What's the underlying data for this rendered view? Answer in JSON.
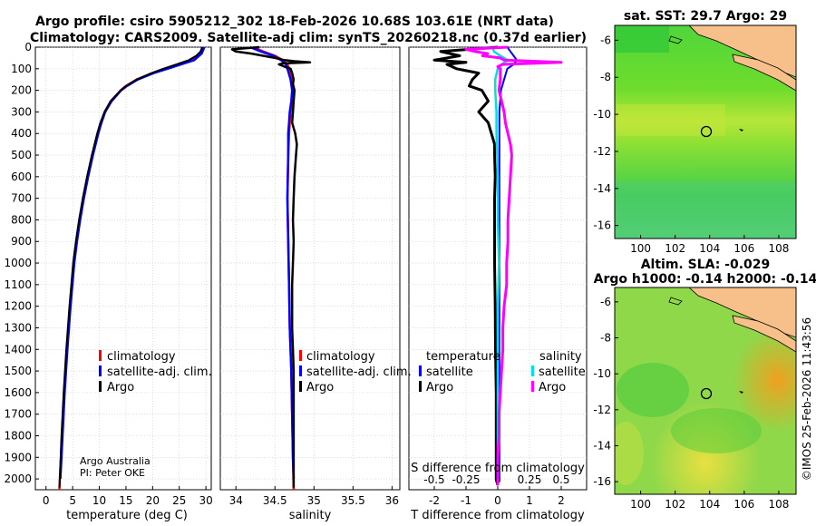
{
  "chart_data": {
    "type": "line",
    "title_line1": "Argo profile: csiro 5905212_302 18-Feb-2026 10.68S 103.61E (NRT data)",
    "title_line2": "Climatology: CARS2009. Satellite-adj clim: synTS_20260218.nc (0.37d earlier)",
    "depth_ticks": [
      0,
      100,
      200,
      300,
      400,
      500,
      600,
      700,
      800,
      900,
      1000,
      1100,
      1200,
      1300,
      1400,
      1500,
      1600,
      1700,
      1800,
      1900,
      2000
    ],
    "depth_range": [
      0,
      2050
    ],
    "panels": [
      {
        "id": "temperature",
        "xlabel": "temperature (deg C)",
        "xlim": [
          -2,
          31
        ],
        "xticks": [
          0,
          5,
          10,
          15,
          20,
          25,
          30
        ],
        "xtick_labels": [
          "0",
          "5",
          "10",
          "15",
          "20",
          "25",
          "30"
        ],
        "legend": [
          "climatology",
          "satellite-adj. clim.",
          "Argo"
        ],
        "colors": {
          "climatology": "#ff0000",
          "satellite": "#0000ff",
          "argo": "#000000"
        },
        "series": [
          {
            "name": "climatology",
            "depth": [
              0,
              30,
              60,
              80,
              100,
              120,
              150,
              180,
              200,
              250,
              300,
              350,
              400,
              500,
              600,
              700,
              800,
              900,
              1000,
              1200,
              1400,
              1600,
              1800,
              2000,
              2050
            ],
            "values": [
              29.4,
              29.0,
              27.5,
              25.0,
              22.5,
              20.0,
              17.0,
              15.0,
              14.0,
              12.2,
              11.0,
              10.3,
              9.7,
              8.7,
              7.8,
              7.0,
              6.3,
              5.7,
              5.2,
              4.5,
              3.9,
              3.4,
              3.0,
              2.6,
              2.5
            ]
          },
          {
            "name": "satellite-adj. clim.",
            "depth": [
              0,
              30,
              60,
              80,
              100,
              120,
              150,
              180,
              200,
              250,
              300,
              350,
              400,
              500,
              600,
              700,
              800,
              900,
              1000,
              1200,
              1400,
              1600,
              1800,
              2000
            ],
            "values": [
              29.7,
              29.2,
              27.8,
              25.3,
              22.8,
              20.2,
              17.2,
              15.2,
              14.1,
              12.3,
              11.1,
              10.4,
              9.8,
              8.8,
              7.9,
              7.1,
              6.4,
              5.8,
              5.3,
              4.6,
              4.0,
              3.5,
              3.1,
              2.7
            ]
          },
          {
            "name": "Argo",
            "depth": [
              0,
              20,
              40,
              60,
              80,
              100,
              120,
              150,
              180,
              200,
              250,
              300,
              350,
              400,
              500,
              600,
              700,
              800,
              900,
              1000,
              1200,
              1400,
              1600,
              1800,
              2000,
              2040
            ],
            "values": [
              29.3,
              29.0,
              28.2,
              26.8,
              24.5,
              22.0,
              19.8,
              17.0,
              15.0,
              14.0,
              12.1,
              11.0,
              10.2,
              9.6,
              8.6,
              7.7,
              6.9,
              6.2,
              5.6,
              5.1,
              4.4,
              3.8,
              3.3,
              2.9,
              2.6,
              2.5
            ]
          }
        ],
        "credit_line1": "Argo Australia",
        "credit_line2": "PI: Peter OKE"
      },
      {
        "id": "salinity",
        "xlabel": "salinity",
        "xlim": [
          33.8,
          36.1
        ],
        "xticks": [
          34,
          34.5,
          35,
          35.5,
          36
        ],
        "xtick_labels": [
          "34",
          "34.5",
          "35",
          "35.5",
          "36"
        ],
        "legend": [
          "climatology",
          "satellite-adj. clim.",
          "Argo"
        ],
        "series": [
          {
            "name": "climatology",
            "depth": [
              0,
              20,
              40,
              60,
              80,
              100,
              150,
              200,
              250,
              300,
              350,
              400,
              500,
              700,
              900,
              1100,
              1300,
              1500,
              1700,
              1900,
              2050
            ],
            "values": [
              34.22,
              34.35,
              34.5,
              34.6,
              34.66,
              34.68,
              34.72,
              34.74,
              34.72,
              34.7,
              34.69,
              34.68,
              34.67,
              34.66,
              34.67,
              34.68,
              34.69,
              34.71,
              34.72,
              34.73,
              34.74
            ]
          },
          {
            "name": "satellite-adj. clim.",
            "depth": [
              0,
              20,
              40,
              60,
              80,
              100,
              150,
              200,
              250,
              300,
              350,
              400,
              500,
              700,
              900,
              1100,
              1300,
              1500,
              1700,
              1900,
              2000
            ],
            "values": [
              34.18,
              34.32,
              34.48,
              34.58,
              34.64,
              34.66,
              34.7,
              34.72,
              34.71,
              34.69,
              34.68,
              34.67,
              34.67,
              34.66,
              34.67,
              34.68,
              34.69,
              34.71,
              34.72,
              34.73,
              34.74
            ]
          },
          {
            "name": "Argo",
            "depth": [
              0,
              10,
              20,
              30,
              40,
              50,
              60,
              65,
              70,
              75,
              80,
              90,
              100,
              120,
              150,
              170,
              200,
              250,
              300,
              350,
              400,
              450,
              500,
              600,
              700,
              800,
              900,
              1000,
              1100,
              1200,
              1300,
              1400,
              1500,
              1600,
              1700,
              1800,
              1900,
              2000,
              2040
            ],
            "values": [
              34.3,
              33.95,
              34.0,
              34.2,
              34.35,
              34.5,
              34.62,
              34.75,
              34.95,
              34.6,
              34.55,
              34.62,
              34.7,
              34.72,
              34.74,
              34.73,
              34.75,
              34.74,
              34.73,
              34.72,
              34.76,
              34.78,
              34.77,
              34.75,
              34.74,
              34.73,
              34.74,
              34.73,
              34.72,
              34.72,
              34.72,
              34.73,
              34.74,
              34.74,
              34.74,
              34.74,
              34.74,
              34.74,
              34.74
            ]
          }
        ]
      },
      {
        "id": "difference",
        "xlabel": "T difference from climatology",
        "xlim": [
          -2.8,
          2.8
        ],
        "xticks": [
          -2,
          -1,
          0,
          1,
          2
        ],
        "xtick_labels": [
          "-2",
          "-1",
          "0",
          "1",
          "2"
        ],
        "s_label": "S difference from climatology",
        "s_ticks": [
          -0.5,
          -0.25,
          0,
          0.25,
          0.5
        ],
        "s_tick_labels": [
          "-0.5",
          "-0.25",
          "0",
          "0.25",
          "0.5"
        ],
        "legend_temperature_title": "temperature",
        "legend_salinity_title": "salinity",
        "legend_temperature": [
          "satellite",
          "Argo"
        ],
        "legend_salinity": [
          "satellite",
          "Argo"
        ],
        "colors": {
          "t_sat": "#0000ff",
          "t_argo": "#000000",
          "s_sat": "#00e0e0",
          "s_argo": "#ff00ff"
        },
        "series": [
          {
            "name": "T satellite",
            "depth": [
              0,
              20,
              40,
              60,
              80,
              100,
              150,
              200,
              300,
              500,
              800,
              1200,
              1600,
              2000
            ],
            "values": [
              0.3,
              0.4,
              0.5,
              0.6,
              0.5,
              0.3,
              0.2,
              0.1,
              0.05,
              0.05,
              0.05,
              0.05,
              0.05,
              0.05
            ]
          },
          {
            "name": "T Argo",
            "depth": [
              0,
              20,
              40,
              60,
              70,
              80,
              100,
              120,
              150,
              180,
              200,
              250,
              300,
              350,
              400,
              450,
              500,
              600,
              700,
              800,
              900,
              1000,
              1200,
              1400,
              1600,
              1800,
              2000,
              2030
            ],
            "values": [
              0.0,
              -1.8,
              -1.2,
              -2.0,
              -1.0,
              -1.6,
              -1.3,
              -0.6,
              -0.8,
              -0.9,
              -0.5,
              -0.3,
              -0.6,
              -0.3,
              -0.2,
              -0.1,
              -0.1,
              -0.08,
              -0.1,
              -0.1,
              -0.1,
              -0.1,
              -0.08,
              -0.07,
              -0.05,
              -0.05,
              -0.05,
              0.0
            ]
          },
          {
            "name": "S satellite",
            "depth": [
              0,
              20,
              40,
              60,
              80,
              100,
              150,
              200,
              300,
              400,
              600,
              800,
              1000,
              1200,
              1400,
              1600,
              1800,
              2000
            ],
            "values": [
              -0.04,
              -0.03,
              0.02,
              0.08,
              0.03,
              0.0,
              -0.02,
              -0.02,
              -0.01,
              -0.01,
              0.0,
              0.0,
              0.01,
              0.0,
              0.0,
              0.0,
              0.0,
              0.0
            ]
          },
          {
            "name": "S Argo",
            "depth": [
              0,
              10,
              20,
              30,
              40,
              50,
              60,
              70,
              80,
              90,
              100,
              150,
              200,
              250,
              300,
              350,
              400,
              450,
              500,
              600,
              700,
              800,
              900,
              1000,
              1100,
              1200,
              1300,
              1400,
              1500,
              1600,
              1700,
              1800,
              1900,
              2000,
              2030
            ],
            "values": [
              0.08,
              -0.25,
              -0.18,
              -0.08,
              -0.12,
              0.02,
              0.05,
              0.5,
              0.04,
              0.0,
              0.02,
              0.02,
              0.01,
              0.03,
              0.05,
              0.06,
              0.08,
              0.1,
              0.11,
              0.1,
              0.09,
              0.08,
              0.08,
              0.07,
              0.07,
              0.05,
              0.04,
              0.04,
              0.03,
              0.02,
              0.01,
              0.01,
              0.0,
              0.0,
              0.0
            ]
          }
        ]
      }
    ],
    "maps": [
      {
        "id": "sst",
        "title_line1": "sat. SST: 29.7 Argo: 29",
        "lon_ticks": [
          100,
          102,
          104,
          106,
          108
        ],
        "lat_ticks": [
          -6,
          -8,
          -10,
          -12,
          -14,
          -16
        ],
        "lon_range": [
          98.5,
          109
        ],
        "lat_range": [
          -16.7,
          -5.2
        ],
        "argo_position": {
          "lon": 103.61,
          "lat": -10.68
        }
      },
      {
        "id": "sla",
        "title_line1": "Altim. SLA: -0.029",
        "title_line2": "Argo h1000: -0.14 h2000: -0.14",
        "lon_ticks": [
          100,
          102,
          104,
          106,
          108
        ],
        "lat_ticks": [
          -6,
          -8,
          -10,
          -12,
          -14,
          -16
        ],
        "lon_range": [
          98.5,
          109
        ],
        "lat_range": [
          -16.7,
          -5.2
        ],
        "argo_position": {
          "lon": 103.61,
          "lat": -10.68
        }
      }
    ],
    "timestamp": "©IMOS 25-Feb-2026 11:43:56"
  }
}
